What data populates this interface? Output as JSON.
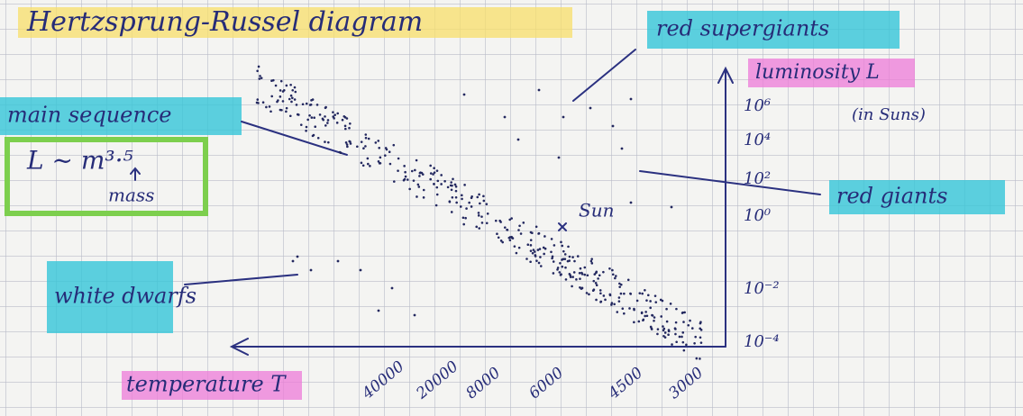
{
  "title": "Hertzsprung-Russel diagram",
  "labels": {
    "red_supergiants": "red supergiants",
    "luminosity": "luminosity L",
    "luminosity_unit": "(in Suns)",
    "main_sequence": "main sequence",
    "mass_relation": "L ~ m³·⁵",
    "mass": "mass",
    "red_giants": "red giants",
    "sun": "Sun",
    "white_dwarfs": "white dwarfs",
    "temperature": "temperature T"
  },
  "luminosity_ticks": [
    "10⁶",
    "10⁴",
    "10²",
    "10⁰",
    "10⁻²",
    "10⁻⁴"
  ],
  "temperature_ticks": [
    "40000",
    "20000",
    "8000",
    "6000",
    "4500",
    "3000"
  ]
}
